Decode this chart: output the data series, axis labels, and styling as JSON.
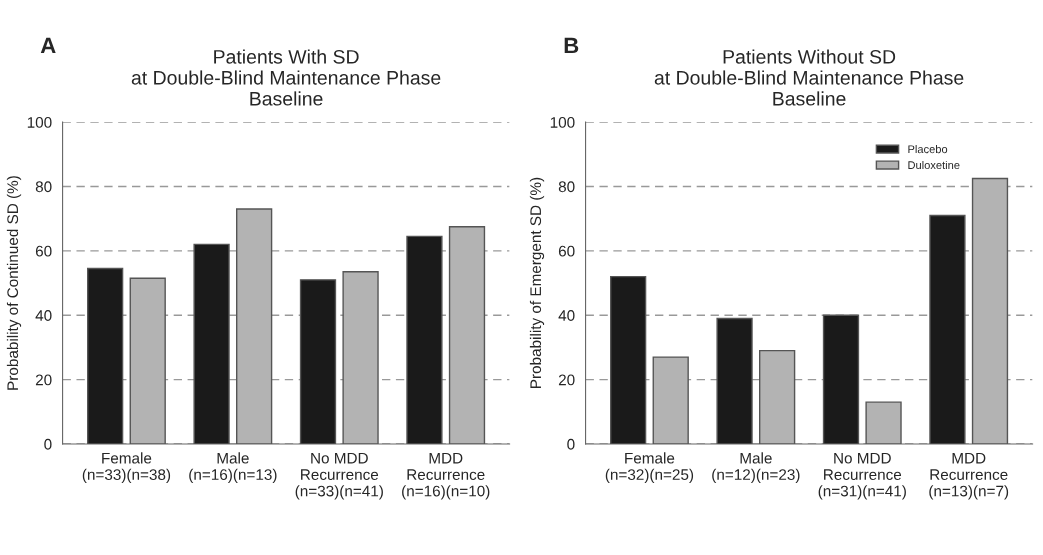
{
  "chart_data": [
    {
      "type": "bar",
      "title": "Patients With SD\nat Double-Blind Maintenance Phase\nBaseline",
      "ylabel": "Probability of Continued SD (%)",
      "annotations": [
        "A"
      ],
      "categories": [
        "Female\n(n=33)(n=38)",
        "Male\n(n=16)(n=13)",
        "No MDD\nRecurrence\n(n=33)(n=41)",
        "MDD\nRecurrence\n(n=16)(n=10)"
      ],
      "series": [
        {
          "color": "#1a1a1a",
          "values": [
            54.5,
            62,
            51,
            64.5
          ]
        },
        {
          "color": "#b3b3b3",
          "values": [
            51.5,
            73,
            53.5,
            67.5
          ]
        }
      ],
      "ylim": [
        0,
        100
      ],
      "yticks": [
        0,
        20,
        40,
        60,
        80,
        100
      ],
      "grid": "y",
      "legend": false
    },
    {
      "type": "bar",
      "title": "Patients Without SD\nat Double-Blind Maintenance Phase\nBaseline",
      "ylabel": "Probability of Emergent SD (%)",
      "annotations": [
        "B"
      ],
      "categories": [
        "Female\n(n=32)(n=25)",
        "Male\n(n=12)(n=23)",
        "No MDD\nRecurrence\n(n=31)(n=41)",
        "MDD\nRecurrence\n(n=13)(n=7)"
      ],
      "series": [
        {
          "name": "Placebo",
          "color": "#1a1a1a",
          "values": [
            52,
            39,
            40,
            71
          ]
        },
        {
          "name": "Duloxetine",
          "color": "#b3b3b3",
          "values": [
            27,
            29,
            13,
            82.5
          ]
        }
      ],
      "ylim": [
        0,
        100
      ],
      "yticks": [
        0,
        20,
        40,
        60,
        80,
        100
      ],
      "grid": "y",
      "legend": "top right"
    }
  ]
}
